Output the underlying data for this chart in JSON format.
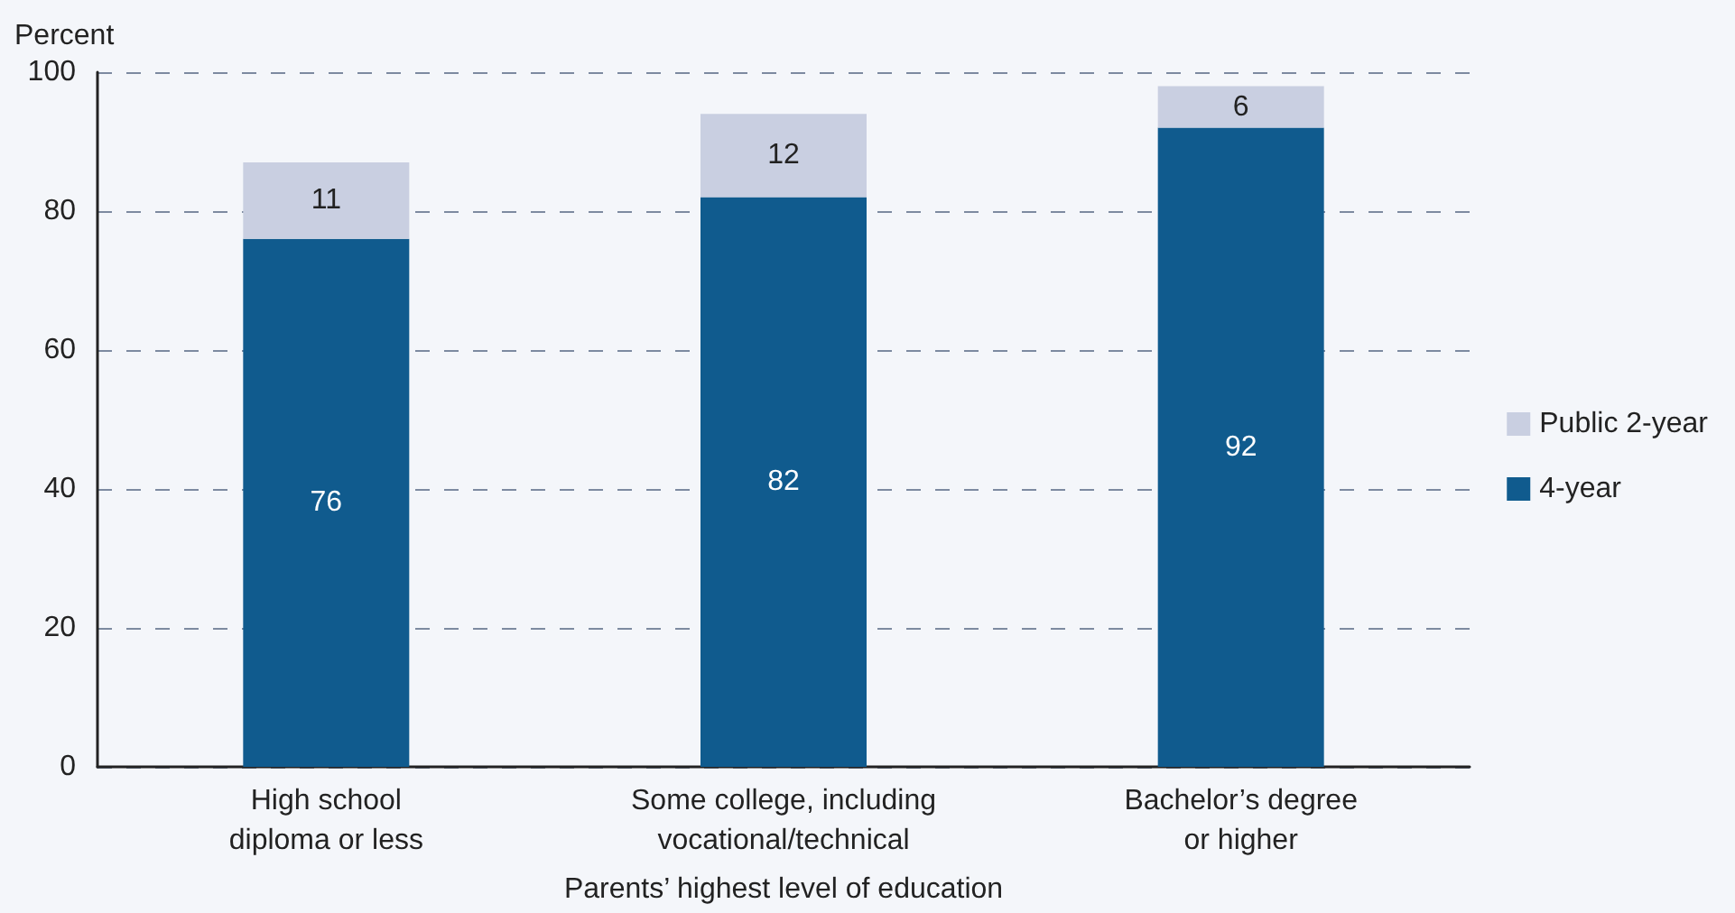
{
  "chart_data": {
    "type": "bar",
    "stacked": true,
    "ylabel": "Percent",
    "xlabel": "Parents’ highest level of education",
    "categories": [
      "High school\ndiploma or less",
      "Some college, including\nvocational/technical",
      "Bachelor’s degree\nor higher"
    ],
    "series": [
      {
        "name": "4-year",
        "color": "#105b8e",
        "values": [
          76,
          82,
          92
        ]
      },
      {
        "name": "Public 2-year",
        "color": "#c9cfe1",
        "values": [
          11,
          12,
          6
        ]
      }
    ],
    "ylim": [
      0,
      100
    ],
    "yticks": [
      0,
      20,
      40,
      60,
      80,
      100
    ],
    "grid": "y",
    "legend": "right",
    "data_labels": true
  }
}
